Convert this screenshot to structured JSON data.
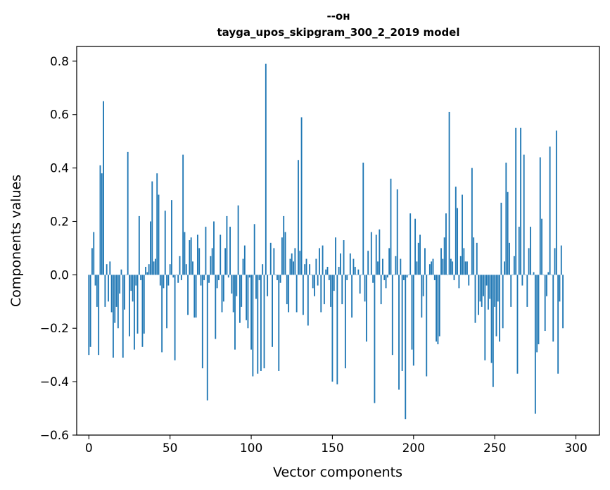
{
  "chart_data": {
    "type": "bar",
    "title": "--он",
    "subtitle": "tayga_upos_skipgram_300_2_2019 model",
    "xlabel": "Vector components",
    "ylabel": "Components values",
    "xlim": [
      -7.5,
      314.5
    ],
    "ylim": [
      -0.6,
      0.855
    ],
    "xticks": [
      0,
      50,
      100,
      150,
      200,
      250,
      300
    ],
    "xtick_labels": [
      "0",
      "50",
      "100",
      "150",
      "200",
      "250",
      "300"
    ],
    "yticks": [
      -0.6,
      -0.4,
      -0.2,
      0.0,
      0.2,
      0.4,
      0.6,
      0.8
    ],
    "ytick_labels": [
      "−0.6",
      "−0.4",
      "−0.2",
      "0.0",
      "0.2",
      "0.4",
      "0.6",
      "0.8"
    ],
    "bar_color": "#1f77b4",
    "grid": false,
    "values": [
      -0.3,
      -0.27,
      0.1,
      0.16,
      -0.04,
      -0.12,
      -0.3,
      0.41,
      0.38,
      0.65,
      -0.12,
      0.04,
      -0.1,
      0.05,
      -0.14,
      -0.31,
      -0.18,
      -0.12,
      -0.2,
      -0.07,
      0.02,
      -0.31,
      -0.13,
      0.0,
      0.46,
      -0.23,
      -0.06,
      -0.1,
      -0.28,
      -0.04,
      -0.22,
      0.22,
      -0.02,
      -0.27,
      -0.22,
      0.03,
      0.01,
      0.04,
      0.2,
      0.35,
      0.05,
      0.06,
      0.38,
      0.3,
      -0.04,
      -0.29,
      -0.05,
      0.24,
      -0.2,
      -0.04,
      0.04,
      0.28,
      -0.01,
      -0.32,
      0.0,
      -0.03,
      0.07,
      -0.02,
      0.45,
      0.16,
      0.04,
      -0.15,
      0.13,
      0.14,
      0.05,
      -0.16,
      -0.16,
      0.15,
      0.1,
      -0.04,
      -0.35,
      -0.02,
      0.18,
      -0.47,
      -0.03,
      0.07,
      0.1,
      0.2,
      -0.24,
      -0.05,
      -0.02,
      0.15,
      -0.14,
      -0.1,
      0.1,
      0.22,
      -0.01,
      0.18,
      -0.07,
      -0.14,
      -0.28,
      -0.08,
      0.26,
      -0.18,
      -0.12,
      0.06,
      0.11,
      -0.17,
      -0.2,
      -0.01,
      -0.28,
      -0.38,
      0.19,
      -0.09,
      -0.37,
      -0.02,
      -0.36,
      0.04,
      -0.35,
      0.79,
      -0.08,
      0.0,
      0.12,
      -0.27,
      0.1,
      0.0,
      -0.02,
      -0.36,
      -0.03,
      0.14,
      0.22,
      0.16,
      -0.11,
      -0.14,
      0.06,
      0.08,
      0.05,
      0.1,
      -0.14,
      0.43,
      0.09,
      0.59,
      -0.15,
      0.04,
      0.06,
      -0.19,
      0.04,
      0.0,
      -0.05,
      -0.08,
      0.06,
      -0.04,
      0.1,
      -0.14,
      0.11,
      -0.11,
      0.02,
      0.03,
      -0.02,
      -0.12,
      -0.4,
      -0.06,
      0.14,
      -0.41,
      0.03,
      0.08,
      -0.11,
      0.13,
      -0.35,
      -0.02,
      0.0,
      0.08,
      -0.16,
      0.06,
      0.03,
      0.0,
      0.02,
      -0.07,
      0.0,
      0.42,
      -0.1,
      -0.25,
      0.09,
      0.0,
      0.16,
      -0.03,
      -0.48,
      0.15,
      0.05,
      0.17,
      -0.11,
      0.06,
      -0.02,
      -0.05,
      -0.01,
      0.1,
      0.36,
      -0.3,
      0.0,
      0.07,
      0.32,
      -0.43,
      0.06,
      -0.36,
      -0.02,
      -0.54,
      -0.01,
      0.0,
      0.23,
      -0.28,
      -0.34,
      0.21,
      0.05,
      0.12,
      0.15,
      -0.16,
      -0.08,
      0.1,
      -0.38,
      0.0,
      0.04,
      0.05,
      0.06,
      -0.02,
      -0.25,
      -0.26,
      -0.23,
      0.1,
      0.06,
      0.14,
      0.23,
      0.0,
      0.61,
      0.06,
      0.05,
      -0.02,
      0.33,
      0.25,
      -0.05,
      0.07,
      0.3,
      0.1,
      0.05,
      0.05,
      -0.04,
      0.0,
      0.4,
      0.14,
      -0.18,
      0.12,
      -0.15,
      -0.1,
      -0.12,
      -0.08,
      -0.32,
      -0.04,
      -0.13,
      -0.09,
      -0.33,
      -0.42,
      -0.12,
      -0.23,
      -0.1,
      -0.25,
      0.27,
      -0.2,
      0.05,
      0.42,
      0.31,
      0.12,
      -0.12,
      0.0,
      0.07,
      0.55,
      -0.37,
      0.18,
      0.55,
      -0.04,
      0.45,
      0.0,
      -0.12,
      0.1,
      0.18,
      0.0,
      0.01,
      -0.52,
      -0.29,
      -0.26,
      0.44,
      0.21,
      0.0,
      -0.21,
      -0.08,
      0.01,
      0.48,
      0.0,
      -0.25,
      0.1,
      0.54,
      -0.37,
      -0.1,
      0.11,
      -0.2
    ]
  }
}
